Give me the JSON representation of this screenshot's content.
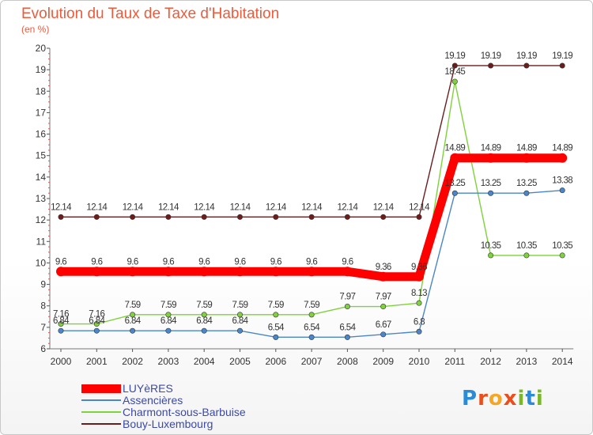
{
  "header": {
    "title": "Evolution du Taux de Taxe d'Habitation",
    "unit": "(en %)"
  },
  "logo": {
    "text": "Proxiti",
    "colors": [
      "#2a8bd6",
      "#e94e1b",
      "#f5a623",
      "#e94e1b",
      "#7ab828",
      "#2a8bd6",
      "#7ab828"
    ]
  },
  "chart_data": {
    "type": "line",
    "title": "Evolution du Taux de Taxe d'Habitation",
    "ylabel": "(en %)",
    "xlabel": "",
    "x": [
      "2000",
      "2001",
      "2002",
      "2003",
      "2004",
      "2005",
      "2006",
      "2007",
      "2008",
      "2009",
      "2010",
      "2011",
      "2012",
      "2013",
      "2014"
    ],
    "ylim": [
      6,
      20
    ],
    "yticks": [
      6,
      7,
      8,
      9,
      10,
      11,
      12,
      13,
      14,
      15,
      16,
      17,
      18,
      19,
      20
    ],
    "grid": false,
    "legend_position": "bottom-left",
    "series": [
      {
        "name": "LUYèRES",
        "color": "#ff0000",
        "values": [
          9.6,
          9.6,
          9.6,
          9.6,
          9.6,
          9.6,
          9.6,
          9.6,
          9.6,
          9.36,
          9.36,
          14.89,
          14.89,
          14.89,
          14.89
        ]
      },
      {
        "name": "Assencières",
        "color": "#4a86c8",
        "values": [
          6.84,
          6.84,
          6.84,
          6.84,
          6.84,
          6.84,
          6.54,
          6.54,
          6.54,
          6.67,
          6.8,
          13.25,
          13.25,
          13.25,
          13.38
        ]
      },
      {
        "name": "Charmont-sous-Barbuise",
        "color": "#7ed23a",
        "values": [
          7.16,
          7.16,
          7.59,
          7.59,
          7.59,
          7.59,
          7.59,
          7.59,
          7.97,
          7.97,
          8.13,
          18.45,
          10.35,
          10.35,
          10.35
        ]
      },
      {
        "name": "Bouy-Luxembourg",
        "color": "#6b1d1d",
        "values": [
          12.14,
          12.14,
          12.14,
          12.14,
          12.14,
          12.14,
          12.14,
          12.14,
          12.14,
          12.14,
          12.14,
          19.19,
          19.19,
          19.19,
          19.19
        ]
      }
    ]
  }
}
